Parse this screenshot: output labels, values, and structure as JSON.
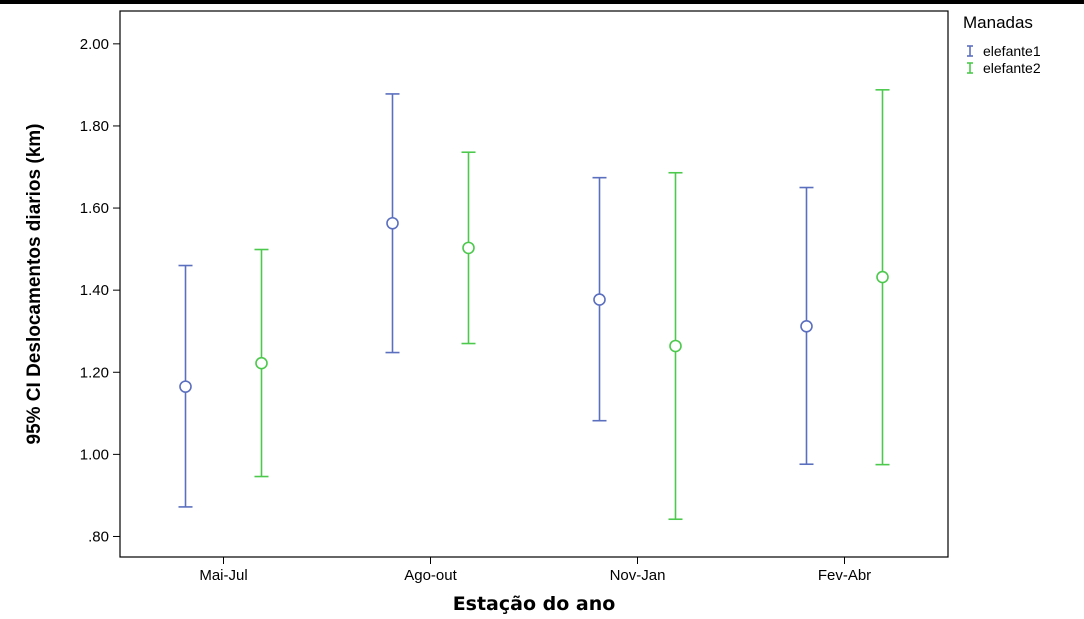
{
  "chart_data": {
    "type": "errorbar",
    "title": "",
    "xlabel": "Estação do ano",
    "ylabel": "95% CI Deslocamentos diarios (km)",
    "categories": [
      "Mai-Jul",
      "Ago-out",
      "Nov-Jan",
      "Fev-Abr"
    ],
    "ylim": [
      0.75,
      2.08
    ],
    "yticks": [
      0.8,
      1.0,
      1.2,
      1.4,
      1.6,
      1.8,
      2.0
    ],
    "ytick_labels": [
      ".80",
      "1.00",
      "1.20",
      "1.40",
      "1.60",
      "1.80",
      "2.00"
    ],
    "grid": false,
    "legend": {
      "title": "Manadas",
      "placement": "right-top"
    },
    "series": [
      {
        "name": "elefante1",
        "color": "#5b6fbf",
        "mean": [
          1.165,
          1.563,
          1.377,
          1.312
        ],
        "lower": [
          0.872,
          1.248,
          1.082,
          0.976
        ],
        "upper": [
          1.46,
          1.878,
          1.674,
          1.65
        ]
      },
      {
        "name": "elefante2",
        "color": "#4cc94c",
        "mean": [
          1.222,
          1.503,
          1.264,
          1.432
        ],
        "lower": [
          0.946,
          1.27,
          0.842,
          0.975
        ],
        "upper": [
          1.499,
          1.736,
          1.686,
          1.888
        ]
      }
    ]
  }
}
